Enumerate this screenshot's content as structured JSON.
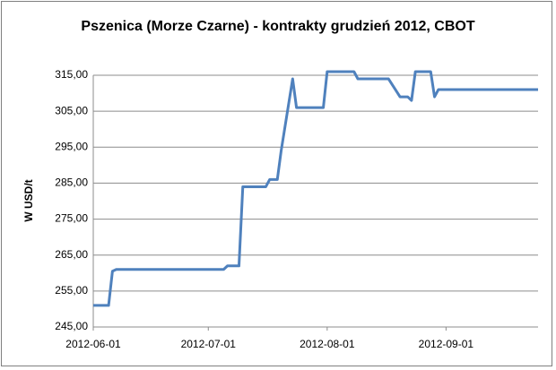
{
  "chart_data": {
    "type": "line",
    "title": "Pszenica (Morze Czarne) - kontrakty grudzień 2012, CBOT",
    "y_label": "W USD/t",
    "x": [
      "2012-06-01",
      "2012-06-05",
      "2012-06-06",
      "2012-06-07",
      "2012-07-05",
      "2012-07-06",
      "2012-07-09",
      "2012-07-10",
      "2012-07-16",
      "2012-07-17",
      "2012-07-19",
      "2012-07-20",
      "2012-07-23",
      "2012-07-24",
      "2012-07-31",
      "2012-08-01",
      "2012-08-08",
      "2012-08-09",
      "2012-08-17",
      "2012-08-20",
      "2012-08-22",
      "2012-08-23",
      "2012-08-24",
      "2012-08-28",
      "2012-08-29",
      "2012-08-30",
      "2012-09-25"
    ],
    "series": [
      {
        "color": "#4f81bd",
        "values": [
          251,
          251,
          260.5,
          261,
          261,
          262,
          262,
          284,
          284,
          286,
          286,
          294,
          314,
          306,
          306,
          316,
          316,
          314,
          314,
          309,
          309,
          308,
          316,
          316,
          309,
          311,
          311
        ]
      }
    ],
    "xlim": [
      "2012-06-01",
      "2012-09-25"
    ],
    "xticks": [
      "2012-06-01",
      "2012-07-01",
      "2012-08-01",
      "2012-09-01"
    ],
    "ylim": [
      245,
      315
    ],
    "yticks": [
      {
        "value": 245,
        "label": "245,00"
      },
      {
        "value": 255,
        "label": "255,00"
      },
      {
        "value": 265,
        "label": "265,00"
      },
      {
        "value": 275,
        "label": "275,00"
      },
      {
        "value": 285,
        "label": "285,00"
      },
      {
        "value": 295,
        "label": "295,00"
      },
      {
        "value": 305,
        "label": "305,00"
      },
      {
        "value": 315,
        "label": "315,00"
      }
    ],
    "grid": true
  }
}
